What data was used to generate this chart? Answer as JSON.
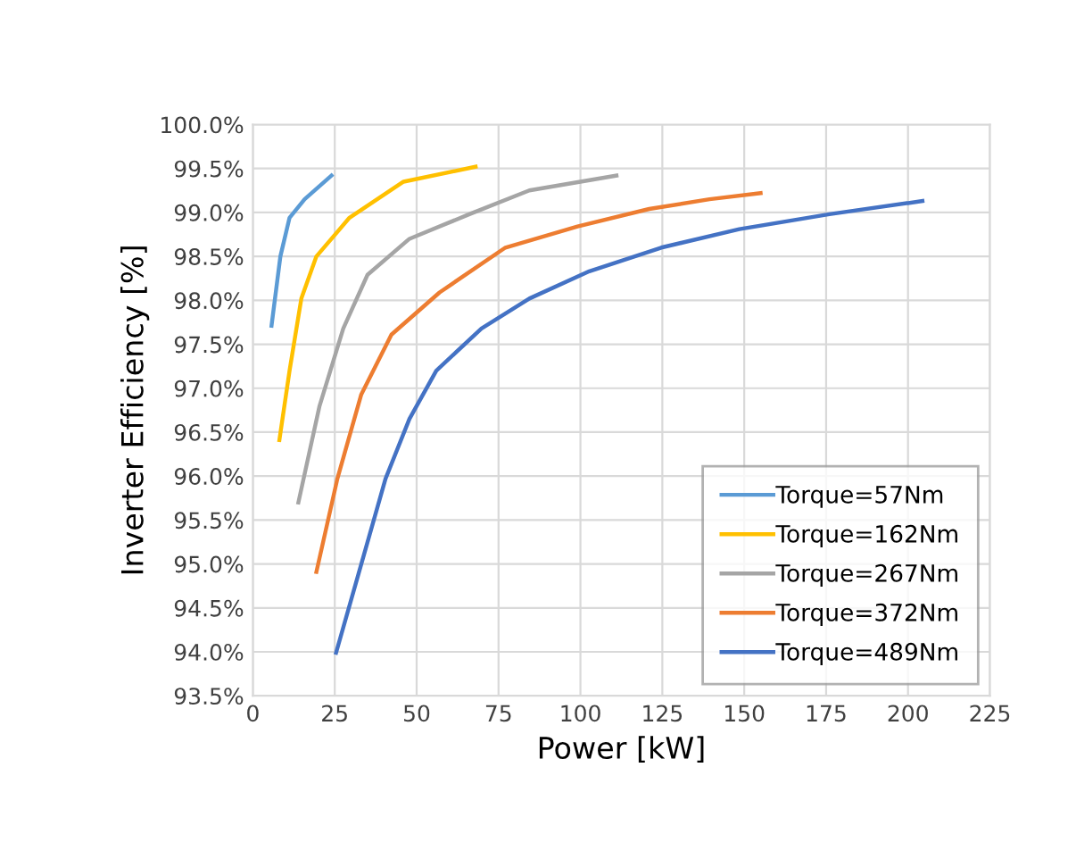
{
  "chart_data": {
    "type": "line",
    "xlabel": "Power [kW]",
    "ylabel": "Inverter Efficiency [%]",
    "xlim": [
      0,
      225
    ],
    "xticks": [
      0,
      25,
      50,
      75,
      100,
      125,
      150,
      175,
      200,
      225
    ],
    "ylim": [
      93.5,
      100
    ],
    "yticks": [
      {
        "value": 93.5,
        "label": "93.5%"
      },
      {
        "value": 94,
        "label": "94.0%"
      },
      {
        "value": 94.5,
        "label": "94.5%"
      },
      {
        "value": 95,
        "label": "95.0%"
      },
      {
        "value": 95.5,
        "label": "95.5%"
      },
      {
        "value": 96,
        "label": "96.0%"
      },
      {
        "value": 96.5,
        "label": "96.5%"
      },
      {
        "value": 97,
        "label": "97.0%"
      },
      {
        "value": 97.5,
        "label": "97.5%"
      },
      {
        "value": 98,
        "label": "98.0%"
      },
      {
        "value": 98.5,
        "label": "98.5%"
      },
      {
        "value": 99,
        "label": "99.0%"
      },
      {
        "value": 99.5,
        "label": "99.5%"
      },
      {
        "value": 100,
        "label": "100.0%"
      }
    ],
    "grid": true,
    "legend": "bottom right",
    "marker": "none",
    "line_style": "solid",
    "series": [
      {
        "name": "Torque=57Nm",
        "color": "#5b9bd5",
        "x": [
          5.7,
          8.4,
          11.2,
          15.8,
          24
        ],
        "values": [
          97.71,
          98.5,
          98.94,
          99.15,
          99.42
        ]
      },
      {
        "name": "Torque=162Nm",
        "color": "#ffc000",
        "x": [
          8.1,
          11.2,
          14.8,
          19.4,
          29.5,
          46,
          68
        ],
        "values": [
          96.41,
          97.2,
          98.02,
          98.5,
          98.94,
          99.35,
          99.52
        ]
      },
      {
        "name": "Torque=267Nm",
        "color": "#a5a5a5",
        "x": [
          13.9,
          20.3,
          27.6,
          35,
          47.8,
          66.1,
          84.4,
          111
        ],
        "values": [
          95.7,
          96.79,
          97.68,
          98.29,
          98.7,
          98.98,
          99.25,
          99.42
        ]
      },
      {
        "name": "Torque=372Nm",
        "color": "#ed7d31",
        "x": [
          19.4,
          25.8,
          33.1,
          42.3,
          57,
          77.1,
          99.1,
          121,
          139.4,
          155
        ],
        "values": [
          94.91,
          95.97,
          96.93,
          97.61,
          98.09,
          98.6,
          98.84,
          99.04,
          99.15,
          99.22
        ]
      },
      {
        "name": "Torque=489Nm",
        "color": "#4472c4",
        "x": [
          25.4,
          32.2,
          40.5,
          47.8,
          56,
          69.8,
          84.4,
          102.7,
          124.7,
          148.5,
          176,
          204.4
        ],
        "values": [
          93.99,
          94.88,
          95.97,
          96.65,
          97.2,
          97.68,
          98.02,
          98.33,
          98.6,
          98.81,
          98.98,
          99.13
        ]
      }
    ]
  }
}
